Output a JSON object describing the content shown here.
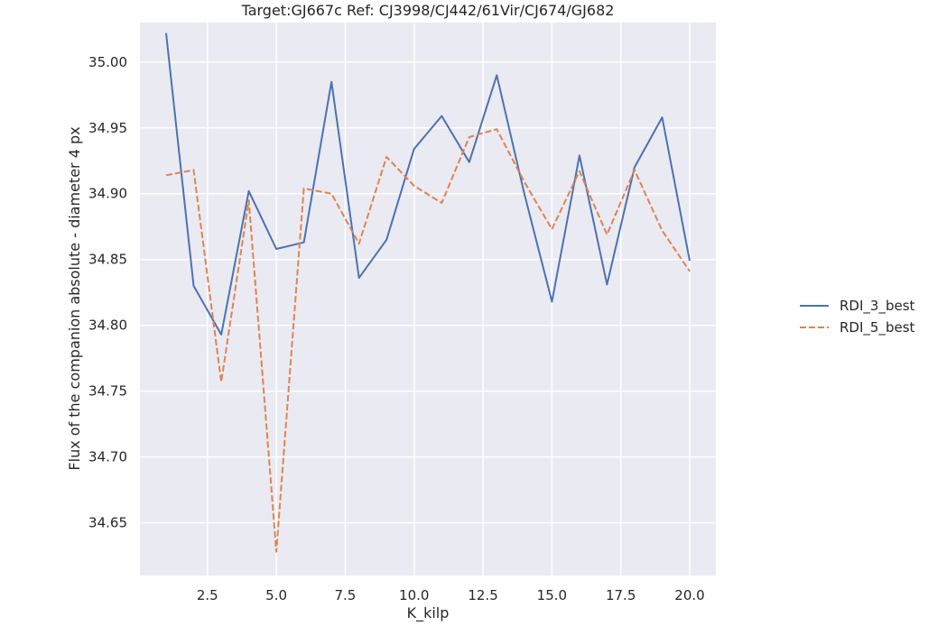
{
  "chart_data": {
    "type": "line",
    "title": "Target:GJ667c Ref: CJ3998/CJ442/61Vir/CJ674/GJ682",
    "xlabel": "K_kilp",
    "ylabel": "Flux of the companion absolute - diameter 4 px",
    "xlim": [
      0.05,
      20.95
    ],
    "ylim": [
      34.61,
      35.03
    ],
    "x_ticks": [
      2.5,
      5.0,
      7.5,
      10.0,
      12.5,
      15.0,
      17.5,
      20.0
    ],
    "x_tick_labels": [
      "2.5",
      "5.0",
      "7.5",
      "10.0",
      "12.5",
      "15.0",
      "17.5",
      "20.0"
    ],
    "y_ticks": [
      34.65,
      34.7,
      34.75,
      34.8,
      34.85,
      34.9,
      34.95,
      35.0
    ],
    "y_tick_labels": [
      "34.65",
      "34.70",
      "34.75",
      "34.80",
      "34.85",
      "34.90",
      "34.95",
      "35.00"
    ],
    "grid": true,
    "legend_position": "right",
    "x": [
      1,
      2,
      3,
      4,
      5,
      6,
      7,
      8,
      9,
      10,
      11,
      12,
      13,
      14,
      15,
      16,
      17,
      18,
      19,
      20
    ],
    "series": [
      {
        "name": "RDI_3_best",
        "color": "#4c72b0",
        "dash": "solid",
        "values": [
          35.022,
          34.83,
          34.793,
          34.902,
          34.858,
          34.863,
          34.985,
          34.836,
          34.865,
          34.934,
          34.959,
          34.924,
          34.99,
          34.9,
          34.818,
          34.929,
          34.831,
          34.92,
          34.958,
          34.849
        ]
      },
      {
        "name": "RDI_5_best",
        "color": "#dd8452",
        "dash": "dashed",
        "values": [
          34.914,
          34.918,
          34.757,
          34.895,
          34.628,
          34.904,
          34.9,
          34.862,
          34.928,
          34.906,
          34.893,
          34.943,
          34.949,
          34.909,
          34.873,
          34.917,
          34.869,
          34.918,
          34.872,
          34.841
        ]
      }
    ]
  },
  "colors": {
    "plot_background": "#eaeaf2",
    "grid": "#ffffff"
  }
}
